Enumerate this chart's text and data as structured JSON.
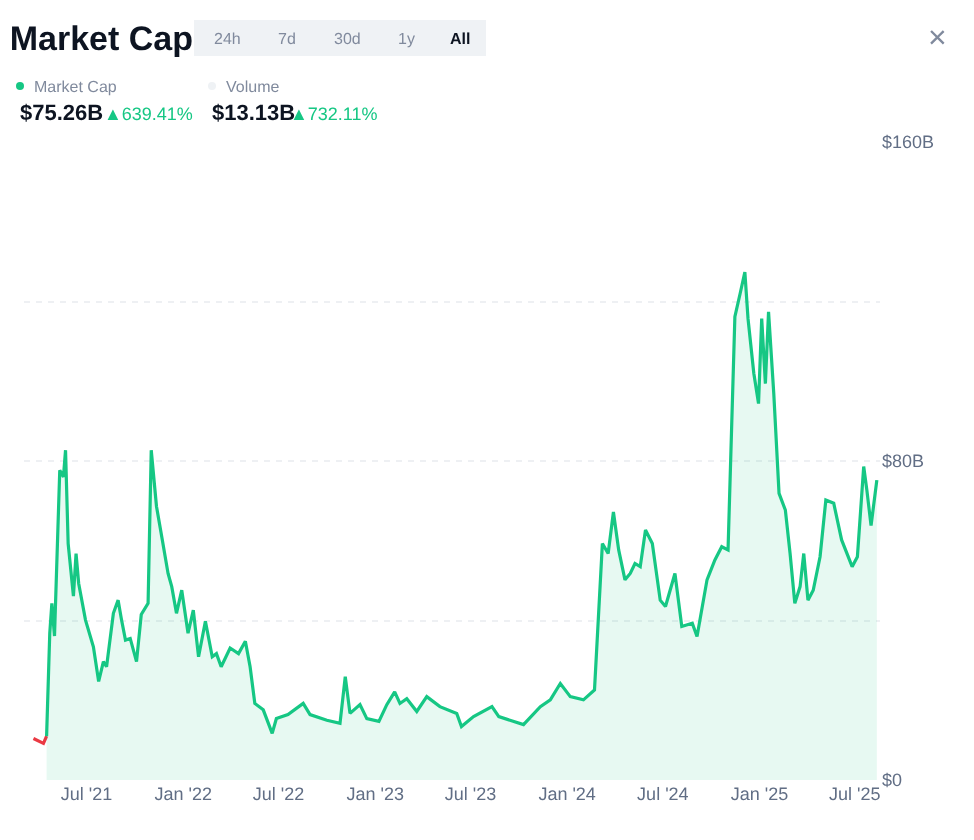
{
  "chart_data": {
    "type": "area",
    "title": "Market Cap",
    "annotations": [
      "24h",
      "7d",
      "30d",
      "1y",
      "All",
      "×",
      "Market Cap",
      "Volume",
      "$75.26B",
      "▲639.41%",
      "$13.13B",
      "▲732.11%"
    ],
    "series": [
      {
        "type": "line",
        "color": "#ea3943",
        "x": [
          "2021-03-22",
          "2021-04-10",
          "2021-04-16"
        ],
        "values": [
          10.4,
          9.2,
          11.0
        ]
      },
      {
        "color": "#16c784",
        "x": [
          "2021-04-16",
          "2021-04-22",
          "2021-04-26",
          "2021-05-01",
          "2021-05-11",
          "2021-05-18",
          "2021-05-22",
          "2021-05-27",
          "2021-06-06",
          "2021-06-11",
          "2021-06-16",
          "2021-06-29",
          "2021-07-14",
          "2021-07-24",
          "2021-08-02",
          "2021-08-08",
          "2021-08-21",
          "2021-08-30",
          "2021-09-05",
          "2021-09-13",
          "2021-09-22",
          "2021-10-04",
          "2021-10-13",
          "2021-10-26",
          "2021-11-01",
          "2021-11-11",
          "2021-11-21",
          "2021-12-03",
          "2021-12-10",
          "2021-12-19",
          "2021-12-29",
          "2022-01-10",
          "2022-01-20",
          "2022-01-30",
          "2022-02-12",
          "2022-02-25",
          "2022-03-05",
          "2022-03-14",
          "2022-03-31",
          "2022-04-16",
          "2022-04-29",
          "2022-05-08",
          "2022-05-17",
          "2022-06-02",
          "2022-06-19",
          "2022-06-27",
          "2022-07-19",
          "2022-08-17",
          "2022-08-30",
          "2022-10-01",
          "2022-10-26",
          "2022-11-05",
          "2022-11-14",
          "2022-12-03",
          "2022-12-16",
          "2023-01-08",
          "2023-01-23",
          "2023-02-07",
          "2023-02-17",
          "2023-03-02",
          "2023-03-21",
          "2023-04-09",
          "2023-05-04",
          "2023-06-05",
          "2023-06-14",
          "2023-07-07",
          "2023-08-11",
          "2023-08-24",
          "2023-10-10",
          "2023-11-11",
          "2023-11-30",
          "2023-12-19",
          "2024-01-07",
          "2024-02-01",
          "2024-02-22",
          "2024-03-08",
          "2024-03-19",
          "2024-03-29",
          "2024-04-08",
          "2024-04-20",
          "2024-04-30",
          "2024-05-09",
          "2024-05-19",
          "2024-05-29",
          "2024-06-11",
          "2024-06-26",
          "2024-07-06",
          "2024-07-24",
          "2024-08-06",
          "2024-08-26",
          "2024-09-04",
          "2024-09-23",
          "2024-10-08",
          "2024-10-21",
          "2024-11-02",
          "2024-11-15",
          "2024-11-25",
          "2024-12-04",
          "2024-12-10",
          "2024-12-21",
          "2024-12-30",
          "2025-01-05",
          "2025-01-12",
          "2025-01-18",
          "2025-01-28",
          "2025-02-07",
          "2025-02-19",
          "2025-02-28",
          "2025-03-09",
          "2025-03-19",
          "2025-03-26",
          "2025-04-03",
          "2025-04-13",
          "2025-04-26",
          "2025-05-07",
          "2025-05-22",
          "2025-06-06",
          "2025-06-26",
          "2025-07-06",
          "2025-07-18",
          "2025-07-24",
          "2025-08-01",
          "2025-08-12"
        ],
        "values": [
          11.0,
          36.8,
          44.3,
          36.1,
          77.7,
          76.0,
          82.7,
          59.3,
          46.1,
          56.8,
          49.3,
          40.1,
          33.4,
          24.7,
          29.7,
          28.4,
          41.8,
          45.1,
          40.5,
          35.1,
          35.5,
          29.7,
          41.5,
          44.3,
          82.7,
          68.6,
          61.0,
          51.8,
          48.5,
          41.8,
          47.6,
          36.8,
          42.6,
          30.9,
          39.8,
          30.9,
          31.7,
          28.4,
          33.1,
          31.7,
          34.8,
          28.4,
          19.2,
          17.6,
          11.7,
          15.4,
          16.4,
          19.2,
          16.4,
          15.0,
          14.2,
          25.9,
          16.7,
          18.9,
          15.4,
          14.7,
          18.9,
          22.1,
          19.2,
          20.4,
          17.2,
          20.9,
          18.4,
          16.7,
          13.4,
          15.9,
          18.4,
          15.9,
          13.9,
          18.4,
          20.1,
          24.2,
          20.9,
          20.1,
          22.6,
          59.3,
          56.8,
          67.2,
          57.7,
          50.2,
          51.8,
          54.3,
          53.5,
          62.7,
          59.3,
          45.1,
          43.5,
          51.8,
          38.5,
          39.3,
          36.0,
          50.2,
          55.2,
          58.5,
          57.7,
          116.2,
          122.0,
          127.4,
          115.7,
          102.0,
          94.4,
          115.7,
          99.4,
          117.4,
          96.9,
          71.9,
          67.7,
          56.8,
          44.3,
          48.5,
          56.8,
          45.1,
          47.6,
          56.0,
          70.2,
          69.4,
          60.2,
          53.5,
          56.0,
          78.6,
          72.7,
          63.8,
          75.2
        ]
      }
    ],
    "xlim": [
      "2021-03-04",
      "2025-08-18"
    ],
    "xticks": [
      {
        "value": "2021-07-01",
        "label": "Jul '21"
      },
      {
        "value": "2022-01-01",
        "label": "Jan '22"
      },
      {
        "value": "2022-07-01",
        "label": "Jul '22"
      },
      {
        "value": "2023-01-01",
        "label": "Jan '23"
      },
      {
        "value": "2023-07-01",
        "label": "Jul '23"
      },
      {
        "value": "2024-01-01",
        "label": "Jan '24"
      },
      {
        "value": "2024-07-01",
        "label": "Jul '24"
      },
      {
        "value": "2025-01-01",
        "label": "Jan '25"
      },
      {
        "value": "2025-07-01",
        "label": "Jul '25"
      }
    ],
    "ylim": [
      0,
      160
    ],
    "yticks": [
      {
        "value": 0,
        "label": "$0"
      },
      {
        "value": 40,
        "label": null
      },
      {
        "value": 80,
        "label": "$80B"
      },
      {
        "value": 120,
        "label": null
      },
      {
        "value": 160,
        "label": "$160B"
      }
    ],
    "grid": "y",
    "marker": "none",
    "line_style": "solid"
  }
}
